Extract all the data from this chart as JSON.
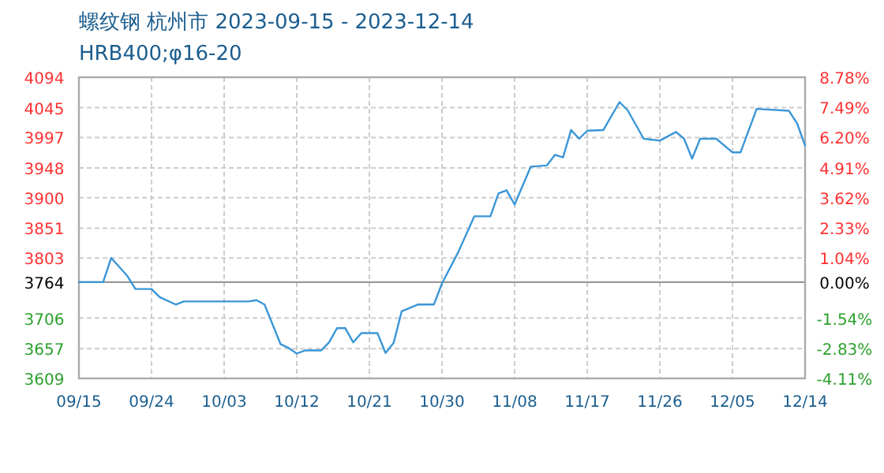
{
  "chart_data": {
    "type": "line",
    "title": "螺纹钢 杭州市 2023-09-15 - 2023-12-14",
    "subtitle": "HRB400;φ16-20",
    "x": [
      "2023-09-15",
      "2023-09-18",
      "2023-09-19",
      "2023-09-21",
      "2023-09-22",
      "2023-09-24",
      "2023-09-25",
      "2023-09-27",
      "2023-09-28",
      "2023-10-06",
      "2023-10-07",
      "2023-10-08",
      "2023-10-10",
      "2023-10-11",
      "2023-10-12",
      "2023-10-13",
      "2023-10-15",
      "2023-10-16",
      "2023-10-17",
      "2023-10-18",
      "2023-10-19",
      "2023-10-20",
      "2023-10-22",
      "2023-10-23",
      "2023-10-24",
      "2023-10-25",
      "2023-10-27",
      "2023-10-29",
      "2023-10-30",
      "2023-11-01",
      "2023-11-03",
      "2023-11-05",
      "2023-11-06",
      "2023-11-07",
      "2023-11-08",
      "2023-11-10",
      "2023-11-12",
      "2023-11-13",
      "2023-11-14",
      "2023-11-15",
      "2023-11-16",
      "2023-11-17",
      "2023-11-19",
      "2023-11-21",
      "2023-11-22",
      "2023-11-24",
      "2023-11-26",
      "2023-11-28",
      "2023-11-29",
      "2023-11-30",
      "2023-12-01",
      "2023-12-03",
      "2023-12-05",
      "2023-12-06",
      "2023-12-08",
      "2023-12-12",
      "2023-12-13",
      "2023-12-14"
    ],
    "series": [
      {
        "color": "#3a96d8",
        "values": [
          3764,
          3764,
          3803,
          3774,
          3753,
          3753,
          3740,
          3728,
          3733,
          3733,
          3735,
          3728,
          3664,
          3658,
          3649,
          3654,
          3654,
          3667,
          3690,
          3690,
          3667,
          3682,
          3682,
          3650,
          3666,
          3717,
          3728,
          3728,
          3762,
          3812,
          3870,
          3870,
          3907,
          3912,
          3889,
          3950,
          3952,
          3969,
          3965,
          4009,
          3995,
          4008,
          4009,
          4054,
          4041,
          3995,
          3992,
          4006,
          3995,
          3963,
          3995,
          3995,
          3973,
          3973,
          4043,
          4040,
          4020,
          3984
        ]
      }
    ],
    "xlim": [
      "2023-09-15",
      "2023-12-14"
    ],
    "xticks": [
      {
        "value": "2023-09-15",
        "label": "09/15"
      },
      {
        "value": "2023-09-24",
        "label": "09/24"
      },
      {
        "value": "2023-10-03",
        "label": "10/03"
      },
      {
        "value": "2023-10-12",
        "label": "10/12"
      },
      {
        "value": "2023-10-21",
        "label": "10/21"
      },
      {
        "value": "2023-10-30",
        "label": "10/30"
      },
      {
        "value": "2023-11-08",
        "label": "11/08"
      },
      {
        "value": "2023-11-17",
        "label": "11/17"
      },
      {
        "value": "2023-11-26",
        "label": "11/26"
      },
      {
        "value": "2023-12-05",
        "label": "12/05"
      },
      {
        "value": "2023-12-14",
        "label": "12/14"
      }
    ],
    "ylim": [
      3609,
      4094
    ],
    "yticks": [
      3609,
      3657,
      3706,
      3764,
      3803,
      3851,
      3900,
      3948,
      3997,
      4045,
      4094
    ],
    "y2lim": [
      -4.11,
      8.78
    ],
    "y2ticks": [
      {
        "value": -4.11,
        "label": "-4.11%"
      },
      {
        "value": -2.83,
        "label": "-2.83%"
      },
      {
        "value": -1.54,
        "label": "-1.54%"
      },
      {
        "value": 0,
        "label": "0.00%"
      },
      {
        "value": 1.04,
        "label": "1.04%"
      },
      {
        "value": 2.33,
        "label": "2.33%"
      },
      {
        "value": 3.62,
        "label": "3.62%"
      },
      {
        "value": 4.91,
        "label": "4.91%"
      },
      {
        "value": 6.2,
        "label": "6.20%"
      },
      {
        "value": 7.49,
        "label": "7.49%"
      },
      {
        "value": 8.78,
        "label": "8.78%"
      }
    ],
    "ref_lines": [
      {
        "axis": "y",
        "value": 3764,
        "color": "#999999"
      }
    ],
    "grid": true,
    "marker": "none",
    "line_style": "solid"
  }
}
